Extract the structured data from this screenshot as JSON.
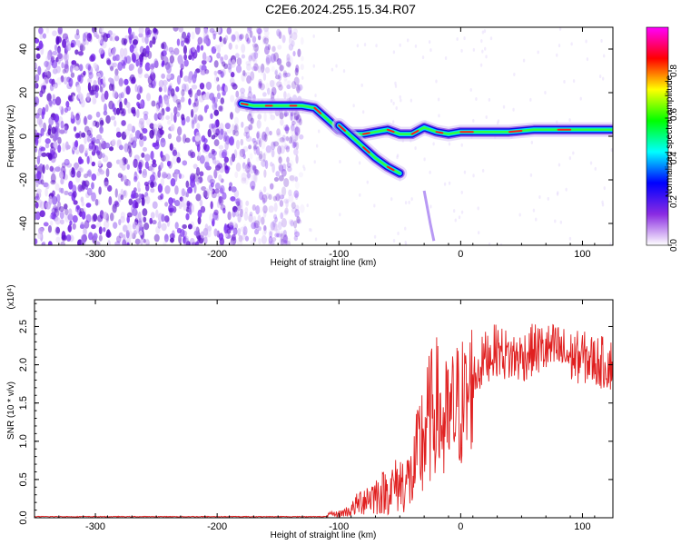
{
  "title": "C2E6.2024.255.15.34.R07",
  "chart_data": [
    {
      "type": "heatmap",
      "title": "C2E6.2024.255.15.34.R07",
      "xlabel": "Height of straight line (km)",
      "ylabel": "Frequency (Hz)",
      "xlim": [
        -350,
        125
      ],
      "ylim": [
        -50,
        50
      ],
      "x_ticks": [
        "-300",
        "-200",
        "-100",
        "0",
        "100"
      ],
      "y_ticks": [
        "-40",
        "-20",
        "0",
        "20",
        "40"
      ],
      "colorbar": {
        "label": "Normalized spectral amplitude",
        "range": [
          0,
          1
        ],
        "ticks": [
          "0.0",
          "0.2",
          "0.4",
          "0.6",
          "0.8"
        ],
        "colors": [
          "#ffffff",
          "#8a2be2",
          "#0000ff",
          "#00ffff",
          "#00ff00",
          "#ffff00",
          "#ff0000",
          "#ff00ff"
        ]
      },
      "signal_trace": {
        "x": [
          -180,
          -170,
          -160,
          -150,
          -140,
          -130,
          -120,
          -110,
          -100,
          -90,
          -80,
          -70,
          -60,
          -50,
          -40,
          -30,
          -20,
          -10,
          0,
          20,
          40,
          60,
          80,
          100,
          125
        ],
        "y": [
          15,
          14,
          14,
          14,
          14,
          14,
          13,
          8,
          3,
          1,
          1,
          2,
          3,
          1,
          1,
          4,
          2,
          1,
          2,
          2,
          2,
          3,
          3,
          3,
          3
        ]
      },
      "branch_trace": {
        "x": [
          -100,
          -90,
          -80,
          -70,
          -60,
          -50
        ],
        "y": [
          5,
          0,
          -5,
          -10,
          -14,
          -17
        ]
      },
      "noise_region_x": [
        -350,
        -130
      ]
    },
    {
      "type": "line",
      "title": "",
      "xlabel": "Height of straight line (km)",
      "ylabel": "SNR (10 * v/v)",
      "y_multiplier": "(x10⁴)",
      "xlim": [
        -350,
        125
      ],
      "ylim": [
        0,
        2.85
      ],
      "x_ticks": [
        "-300",
        "-200",
        "-100",
        "0",
        "100"
      ],
      "y_ticks": [
        "0.0",
        "0.5",
        "1.0",
        "1.5",
        "2.0",
        "2.5"
      ],
      "color": "#e02020",
      "series": [
        {
          "x": [
            -350,
            -300,
            -250,
            -200,
            -150,
            -120,
            -100,
            -90,
            -80,
            -70,
            -60,
            -50,
            -40,
            -30,
            -25,
            -20,
            -15,
            -10,
            -5,
            0,
            5,
            10,
            20,
            30,
            40,
            50,
            60,
            70,
            80,
            90,
            100,
            110,
            125
          ],
          "y": [
            0.01,
            0.01,
            0.01,
            0.01,
            0.01,
            0.02,
            0.05,
            0.1,
            0.25,
            0.3,
            0.35,
            0.45,
            0.5,
            1.1,
            1.3,
            1.5,
            1.2,
            1.2,
            1.4,
            1.5,
            1.5,
            1.8,
            2.1,
            2.2,
            2.1,
            2.1,
            2.2,
            2.2,
            2.2,
            2.1,
            2.1,
            2.05,
            2.0
          ]
        }
      ]
    }
  ]
}
